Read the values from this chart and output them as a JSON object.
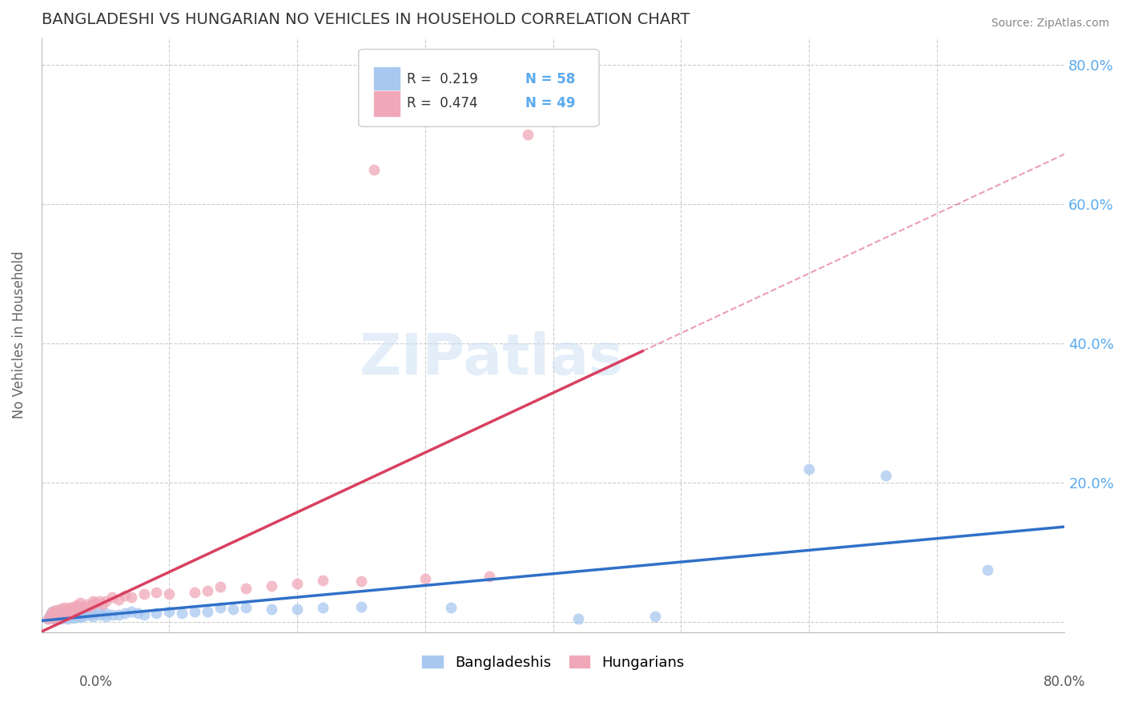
{
  "title": "BANGLADESHI VS HUNGARIAN NO VEHICLES IN HOUSEHOLD CORRELATION CHART",
  "source": "Source: ZipAtlas.com",
  "ylabel": "No Vehicles in Household",
  "xmin": 0.0,
  "xmax": 0.8,
  "ymin": -0.015,
  "ymax": 0.84,
  "legend_r_blue": "R =  0.219",
  "legend_n_blue": "N = 58",
  "legend_r_pink": "R =  0.474",
  "legend_n_pink": "N = 49",
  "blue_color": "#a8c8f0",
  "pink_color": "#f0a8b8",
  "trendline_blue": "#3070c8",
  "trendline_pink": "#d84060",
  "blue_scatter": [
    [
      0.005,
      0.005
    ],
    [
      0.007,
      0.01
    ],
    [
      0.008,
      0.015
    ],
    [
      0.01,
      0.005
    ],
    [
      0.01,
      0.01
    ],
    [
      0.01,
      0.015
    ],
    [
      0.012,
      0.005
    ],
    [
      0.012,
      0.01
    ],
    [
      0.015,
      0.005
    ],
    [
      0.015,
      0.012
    ],
    [
      0.015,
      0.018
    ],
    [
      0.018,
      0.008
    ],
    [
      0.018,
      0.014
    ],
    [
      0.02,
      0.005
    ],
    [
      0.02,
      0.01
    ],
    [
      0.02,
      0.015
    ],
    [
      0.022,
      0.008
    ],
    [
      0.022,
      0.013
    ],
    [
      0.025,
      0.006
    ],
    [
      0.025,
      0.012
    ],
    [
      0.028,
      0.008
    ],
    [
      0.028,
      0.015
    ],
    [
      0.03,
      0.007
    ],
    [
      0.03,
      0.012
    ],
    [
      0.032,
      0.008
    ],
    [
      0.035,
      0.01
    ],
    [
      0.035,
      0.015
    ],
    [
      0.038,
      0.01
    ],
    [
      0.04,
      0.008
    ],
    [
      0.04,
      0.012
    ],
    [
      0.045,
      0.01
    ],
    [
      0.045,
      0.015
    ],
    [
      0.05,
      0.008
    ],
    [
      0.05,
      0.012
    ],
    [
      0.055,
      0.01
    ],
    [
      0.06,
      0.01
    ],
    [
      0.065,
      0.012
    ],
    [
      0.07,
      0.015
    ],
    [
      0.075,
      0.012
    ],
    [
      0.08,
      0.01
    ],
    [
      0.09,
      0.012
    ],
    [
      0.1,
      0.015
    ],
    [
      0.11,
      0.012
    ],
    [
      0.12,
      0.015
    ],
    [
      0.13,
      0.015
    ],
    [
      0.14,
      0.02
    ],
    [
      0.15,
      0.018
    ],
    [
      0.16,
      0.02
    ],
    [
      0.18,
      0.018
    ],
    [
      0.2,
      0.018
    ],
    [
      0.22,
      0.02
    ],
    [
      0.25,
      0.022
    ],
    [
      0.32,
      0.02
    ],
    [
      0.42,
      0.005
    ],
    [
      0.48,
      0.008
    ],
    [
      0.6,
      0.22
    ],
    [
      0.66,
      0.21
    ],
    [
      0.74,
      0.075
    ]
  ],
  "pink_scatter": [
    [
      0.005,
      0.005
    ],
    [
      0.007,
      0.01
    ],
    [
      0.008,
      0.014
    ],
    [
      0.01,
      0.005
    ],
    [
      0.01,
      0.016
    ],
    [
      0.012,
      0.008
    ],
    [
      0.012,
      0.017
    ],
    [
      0.015,
      0.01
    ],
    [
      0.015,
      0.018
    ],
    [
      0.018,
      0.012
    ],
    [
      0.018,
      0.02
    ],
    [
      0.02,
      0.01
    ],
    [
      0.02,
      0.018
    ],
    [
      0.022,
      0.012
    ],
    [
      0.022,
      0.02
    ],
    [
      0.025,
      0.015
    ],
    [
      0.025,
      0.022
    ],
    [
      0.028,
      0.018
    ],
    [
      0.028,
      0.024
    ],
    [
      0.03,
      0.02
    ],
    [
      0.03,
      0.028
    ],
    [
      0.032,
      0.022
    ],
    [
      0.035,
      0.025
    ],
    [
      0.038,
      0.022
    ],
    [
      0.04,
      0.025
    ],
    [
      0.04,
      0.03
    ],
    [
      0.042,
      0.028
    ],
    [
      0.045,
      0.03
    ],
    [
      0.048,
      0.025
    ],
    [
      0.05,
      0.03
    ],
    [
      0.055,
      0.035
    ],
    [
      0.06,
      0.032
    ],
    [
      0.065,
      0.038
    ],
    [
      0.07,
      0.035
    ],
    [
      0.08,
      0.04
    ],
    [
      0.09,
      0.042
    ],
    [
      0.1,
      0.04
    ],
    [
      0.12,
      0.042
    ],
    [
      0.13,
      0.045
    ],
    [
      0.14,
      0.05
    ],
    [
      0.16,
      0.048
    ],
    [
      0.18,
      0.052
    ],
    [
      0.2,
      0.055
    ],
    [
      0.22,
      0.06
    ],
    [
      0.25,
      0.058
    ],
    [
      0.3,
      0.062
    ],
    [
      0.35,
      0.065
    ],
    [
      0.26,
      0.65
    ],
    [
      0.38,
      0.7
    ]
  ],
  "pink_trendline_end_x": 0.47,
  "watermark_text": "ZIPatlas",
  "background_color": "#ffffff",
  "grid_color": "#cccccc",
  "ytick_vals": [
    0.0,
    0.2,
    0.4,
    0.6,
    0.8
  ],
  "ytick_labels": [
    "",
    "20.0%",
    "40.0%",
    "60.0%",
    "80.0%"
  ],
  "right_tick_color": "#5aaaee",
  "title_color": "#333333",
  "ylabel_color": "#666666",
  "source_color": "#888888"
}
